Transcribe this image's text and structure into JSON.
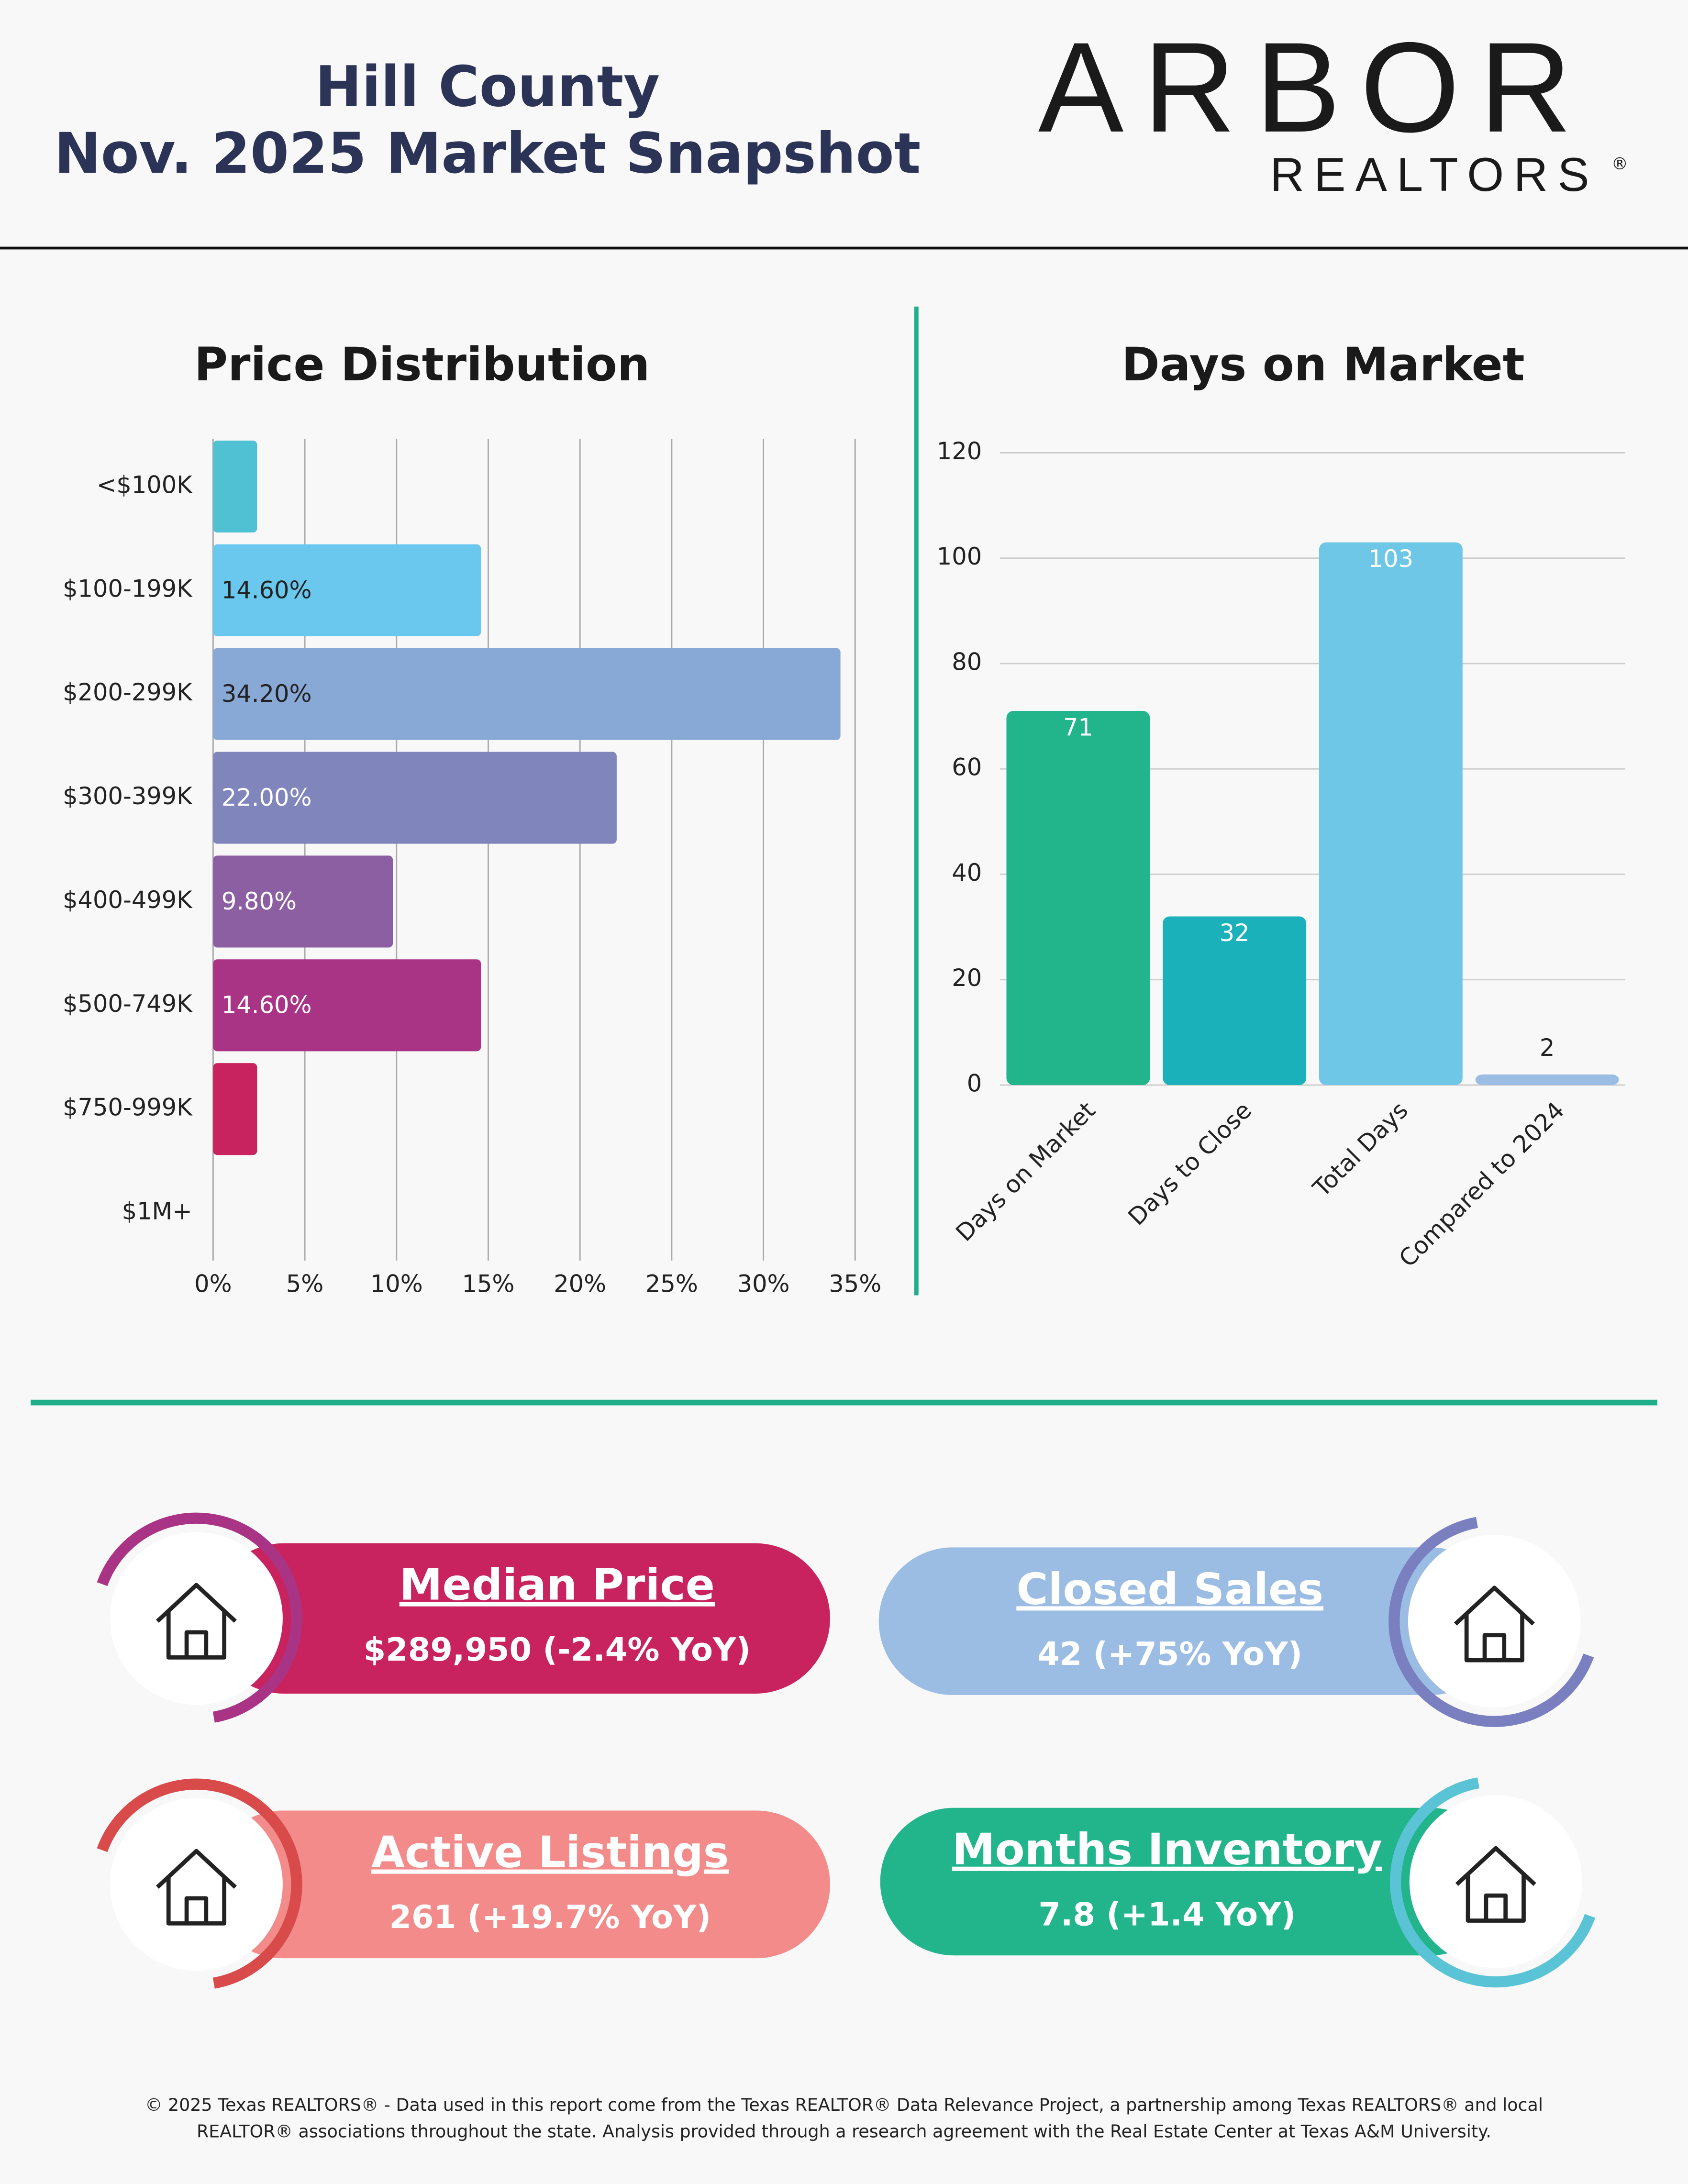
{
  "header": {
    "title_line1": "Hill County",
    "title_line2": "Nov. 2025 Market Snapshot",
    "logo": "ARBOR",
    "logo_sub": "REALTORS",
    "logo_mark": "®"
  },
  "chart_data": [
    {
      "type": "bar",
      "orientation": "horizontal",
      "title": "Price Distribution",
      "categories": [
        "<$100K",
        "$100-199K",
        "$200-299K",
        "$300-399K",
        "$400-499K",
        "$500-749K",
        "$750-999K",
        "$1M+"
      ],
      "values": [
        2.4,
        14.6,
        34.2,
        22.0,
        9.8,
        14.6,
        2.4,
        0
      ],
      "value_labels": [
        null,
        "14.60%",
        "34.20%",
        "22.00%",
        "9.80%",
        "14.60%",
        null,
        null
      ],
      "colors": [
        "#4fc1d3",
        "#6ac8ef",
        "#88a8d6",
        "#8085bb",
        "#8c5fa3",
        "#a93384",
        "#c8235e",
        "#c8235e"
      ],
      "xlim": [
        0,
        35
      ],
      "xticks": [
        {
          "value": 0,
          "label": "0%"
        },
        {
          "value": 5,
          "label": "5%"
        },
        {
          "value": 10,
          "label": "10%"
        },
        {
          "value": 15,
          "label": "15%"
        },
        {
          "value": 20,
          "label": "20%"
        },
        {
          "value": 25,
          "label": "25%"
        },
        {
          "value": 30,
          "label": "30%"
        },
        {
          "value": 35,
          "label": "35%"
        }
      ],
      "grid": true
    },
    {
      "type": "bar",
      "orientation": "vertical",
      "title": "Days on Market",
      "categories": [
        "Days on Market",
        "Days to Close",
        "Total Days",
        "Compared to 2024"
      ],
      "values": [
        71,
        32,
        103,
        2
      ],
      "colors": [
        "#22b58c",
        "#1bb1bb",
        "#6ec7e6",
        "#9bbce3"
      ],
      "ylim": [
        0,
        120
      ],
      "yticks": [
        0,
        20,
        40,
        60,
        80,
        100,
        120
      ],
      "grid": true
    }
  ],
  "cards": [
    {
      "title": "Median Price",
      "value": "$289,950 (-2.4% YoY)"
    },
    {
      "title": "Closed Sales",
      "value": "42 (+75% YoY)"
    },
    {
      "title": "Active Listings",
      "value": "261 (+19.7% YoY)"
    },
    {
      "title": "Months Inventory",
      "value": "7.8 (+1.4 YoY)"
    }
  ],
  "footer": {
    "line1": "© 2025 Texas REALTORS® - Data used in this report come from the Texas REALTOR® Data Relevance Project, a partnership among Texas REALTORS® and local",
    "line2": "REALTOR® associations throughout the state. Analysis provided through a research agreement with the Real Estate Center at Texas A&M University."
  }
}
